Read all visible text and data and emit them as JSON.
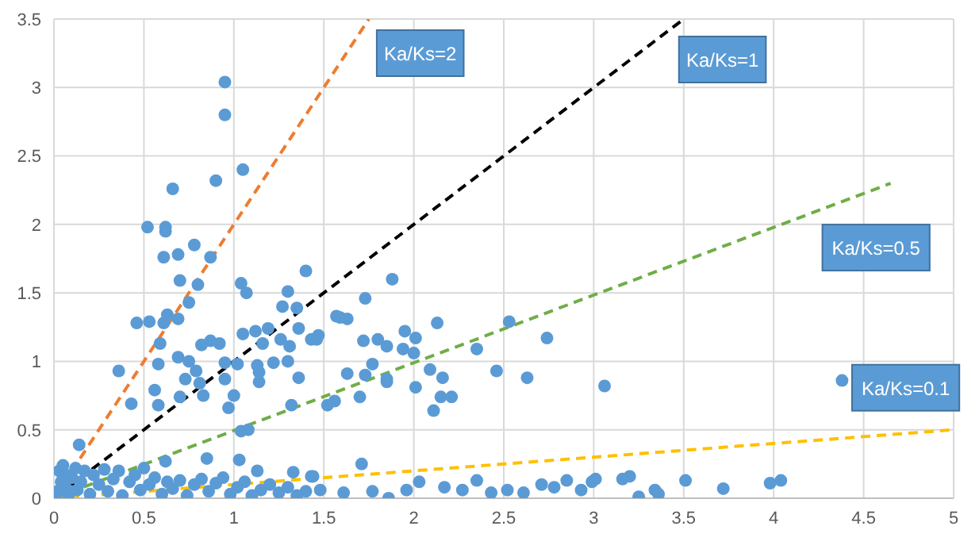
{
  "chart_data": {
    "type": "scatter",
    "xlim": [
      0,
      5
    ],
    "xticks": [
      0,
      0.5,
      1,
      1.5,
      2,
      2.5,
      3,
      3.5,
      4,
      4.5,
      5
    ],
    "ylim": [
      0,
      3.5
    ],
    "yticks": [
      0,
      0.5,
      1,
      1.5,
      2,
      2.5,
      3,
      3.5
    ],
    "grid": true,
    "legend": false,
    "marker": "circle",
    "series": [
      {
        "color": "#5b9bd5",
        "x": [
          0.95,
          0.95,
          1.05,
          0.9,
          0.66,
          0.52,
          0.62,
          0.62,
          0.78,
          0.61,
          0.69,
          0.87,
          0.7,
          0.8,
          0.75,
          0.46,
          0.53,
          0.61,
          0.63,
          0.69,
          1.04,
          1.07,
          1.4,
          1.3,
          1.27,
          1.35,
          0.36,
          0.43,
          0.59,
          0.58,
          0.56,
          0.58,
          0.69,
          0.75,
          0.73,
          0.7,
          0.82,
          0.87,
          0.79,
          0.81,
          0.83,
          0.92,
          0.95,
          0.95,
          0.97,
          1.0,
          1.02,
          1.05,
          1.12,
          1.16,
          1.19,
          1.14,
          1.14,
          1.13,
          1.22,
          1.3,
          1.26,
          1.31,
          1.36,
          1.36,
          1.43,
          1.47,
          1.32,
          1.04,
          1.08,
          1.03,
          0.85,
          0.62,
          0.14,
          1.13,
          1.33,
          1.43,
          1.57,
          1.52,
          1.56,
          1.88,
          1.73,
          1.59,
          1.63,
          1.46,
          1.72,
          1.8,
          1.85,
          1.95,
          2.01,
          2.13,
          1.94,
          2.0,
          2.35,
          2.53,
          2.74,
          1.77,
          1.63,
          1.73,
          1.85,
          1.85,
          2.09,
          2.16,
          2.01,
          2.46,
          2.63,
          3.06,
          1.7,
          2.15,
          2.21,
          2.11,
          1.71,
          1.44,
          1.48,
          1.61,
          1.77,
          1.86,
          1.96,
          2.03,
          2.17,
          2.27,
          2.35,
          2.43,
          2.52,
          2.61,
          2.71,
          2.78,
          2.85,
          2.93,
          2.99,
          3.01,
          3.16,
          3.2,
          3.25,
          3.34,
          3.36,
          3.51,
          3.72,
          3.98,
          4.04,
          4.38,
          0.02,
          0.03,
          0.05,
          0.06,
          0.08,
          0.1,
          0.12,
          0.13,
          0.15,
          0.17,
          0.2,
          0.22,
          0.25,
          0.28,
          0.3,
          0.33,
          0.36,
          0.38,
          0.42,
          0.45,
          0.48,
          0.5,
          0.53,
          0.56,
          0.6,
          0.63,
          0.66,
          0.7,
          0.74,
          0.78,
          0.82,
          0.86,
          0.9,
          0.94,
          0.98,
          1.02,
          1.06,
          1.1,
          1.15,
          1.2,
          1.25,
          1.3,
          1.35,
          1.4,
          0.01,
          0.04,
          0.07,
          0.09
        ],
        "values": [
          3.04,
          2.8,
          2.4,
          2.32,
          2.26,
          1.98,
          1.98,
          1.95,
          1.85,
          1.76,
          1.78,
          1.76,
          1.59,
          1.56,
          1.43,
          1.28,
          1.29,
          1.28,
          1.34,
          1.31,
          1.57,
          1.5,
          1.66,
          1.51,
          1.4,
          1.39,
          0.93,
          0.69,
          1.13,
          0.98,
          0.79,
          0.68,
          1.03,
          1.0,
          0.87,
          0.74,
          1.12,
          1.15,
          0.93,
          0.84,
          0.75,
          1.13,
          0.99,
          0.87,
          0.66,
          0.75,
          0.98,
          1.2,
          1.22,
          1.13,
          1.24,
          0.85,
          0.92,
          0.97,
          0.99,
          1.0,
          1.16,
          1.11,
          1.24,
          0.88,
          1.16,
          1.19,
          0.68,
          0.49,
          0.5,
          0.28,
          0.29,
          0.27,
          0.39,
          0.2,
          0.19,
          0.16,
          1.33,
          0.68,
          0.71,
          1.6,
          1.46,
          1.32,
          1.31,
          1.16,
          1.15,
          1.16,
          1.11,
          1.22,
          1.17,
          1.28,
          1.09,
          1.06,
          1.09,
          1.29,
          1.17,
          0.98,
          0.91,
          0.9,
          0.87,
          0.85,
          0.94,
          0.88,
          0.81,
          0.93,
          0.88,
          0.82,
          0.74,
          0.74,
          0.74,
          0.64,
          0.25,
          0.16,
          0.06,
          0.04,
          0.05,
          0.0,
          0.06,
          0.12,
          0.08,
          0.06,
          0.13,
          0.04,
          0.06,
          0.04,
          0.1,
          0.08,
          0.13,
          0.06,
          0.12,
          0.14,
          0.14,
          0.16,
          0.01,
          0.06,
          0.03,
          0.13,
          0.07,
          0.11,
          0.13,
          0.86,
          0.05,
          0.2,
          0.24,
          0.1,
          0.02,
          0.15,
          0.22,
          0.06,
          0.12,
          0.2,
          0.03,
          0.17,
          0.1,
          0.21,
          0.05,
          0.14,
          0.2,
          0.02,
          0.12,
          0.17,
          0.06,
          0.22,
          0.1,
          0.15,
          0.03,
          0.12,
          0.07,
          0.13,
          0.02,
          0.1,
          0.14,
          0.05,
          0.11,
          0.15,
          0.03,
          0.08,
          0.12,
          0.02,
          0.06,
          0.1,
          0.04,
          0.08,
          0.02,
          0.05,
          0.0,
          0.12,
          0.17,
          0.05
        ]
      },
      {
        "type": "line",
        "name": "Ka/Ks=2",
        "color": "#ed7d31",
        "line_style": "dashed",
        "marker": "none",
        "x": [
          0,
          1.75
        ],
        "values": [
          0,
          3.5
        ]
      },
      {
        "type": "line",
        "name": "Ka/Ks=1",
        "color": "#000000",
        "line_style": "dashed",
        "marker": "none",
        "x": [
          0,
          3.5
        ],
        "values": [
          0,
          3.5
        ]
      },
      {
        "type": "line",
        "name": "Ka/Ks=0.5",
        "color": "#70ad47",
        "line_style": "dashed",
        "marker": "none",
        "x": [
          0,
          4.65
        ],
        "values": [
          0,
          2.3
        ]
      },
      {
        "type": "line",
        "name": "Ka/Ks=0.1",
        "color": "#ffc000",
        "line_style": "dashed",
        "marker": "none",
        "x": [
          0,
          5
        ],
        "values": [
          0,
          0.5
        ]
      }
    ]
  }
}
